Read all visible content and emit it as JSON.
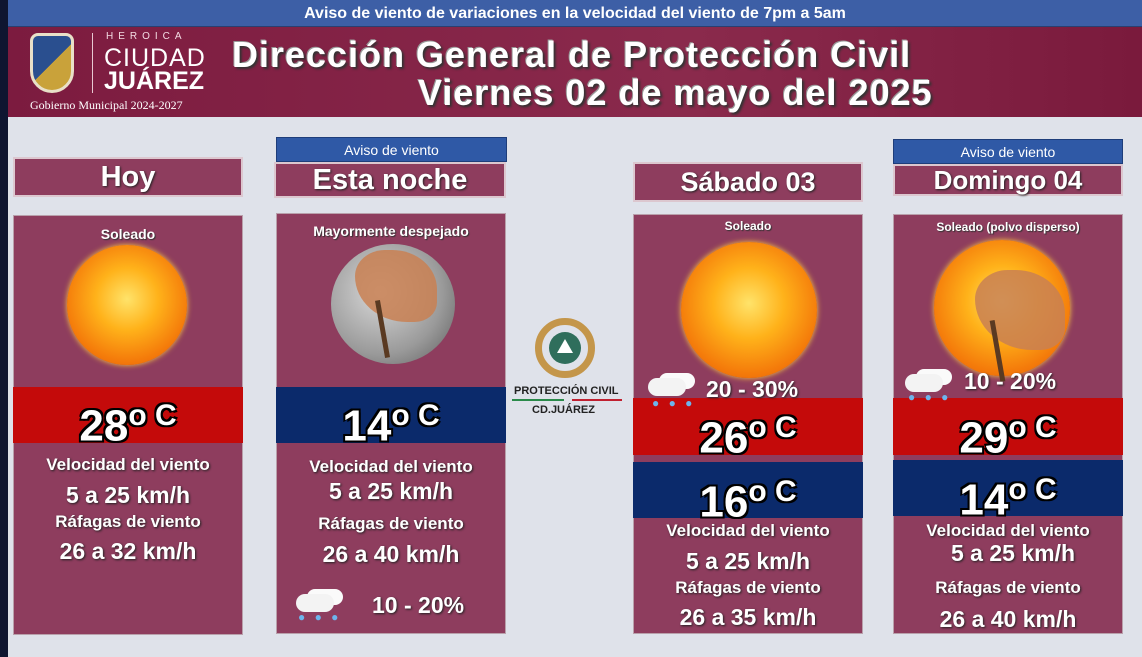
{
  "banner": "Aviso de viento de variaciones en la velocidad del viento de 7pm a 5am",
  "logo": {
    "heroica": "HEROICA",
    "ciudad": "CIUDAD",
    "juarez": "JUÁREZ",
    "gobierno": "Gobierno Municipal 2024-2027"
  },
  "title_line1": "Dirección General de Protección Civil",
  "title_line2": "Viernes 02 de mayo del 2025",
  "center_logo": {
    "line1": "PROTECCIÓN CIVIL",
    "line2": "CD.JUÁREZ"
  },
  "colors": {
    "card": "#8e3d5e",
    "header": "#7c1b3f",
    "banner": "#3d5fa6",
    "high": "#c40a0a",
    "low": "#0b2a6b"
  },
  "cards": [
    {
      "title": "Hoy",
      "condition": "Soleado",
      "icon": "sun-icon",
      "temp": "28",
      "unit": "o C",
      "wind_label": "Velocidad del viento",
      "wind": "5 a 25 km/h",
      "gust_label": "Ráfagas de viento",
      "gust": "26 a 32 km/h"
    },
    {
      "tab": "Aviso  de viento",
      "title": "Esta noche",
      "condition": "Mayormente despejado",
      "icon": "moon-wind-icon",
      "temp": "14",
      "unit": "o C",
      "wind_label": "Velocidad del viento",
      "wind": "5 a 25 km/h",
      "gust_label": "Ráfagas de viento",
      "gust": "26 a 40 km/h",
      "rain": "10 - 20%"
    },
    {
      "title": "Sábado 03",
      "condition": "Soleado",
      "icon": "sun-icon",
      "rain": "20 - 30%",
      "high": "26",
      "low": "16",
      "unit": "o C",
      "wind_label": "Velocidad del viento",
      "wind": "5 a 25 km/h",
      "gust_label": "Ráfagas de viento",
      "gust": "26 a 35 km/h"
    },
    {
      "tab": "Aviso  de viento",
      "title": "Domingo 04",
      "condition": "Soleado (polvo disperso)",
      "icon": "sun-wind-icon",
      "rain": "10 - 20%",
      "high": "29",
      "low": "14",
      "unit": "o C",
      "wind_label": "Velocidad del viento",
      "wind": "5 a 25 km/h",
      "gust_label": "Ráfagas de viento",
      "gust": "26 a 40 km/h"
    }
  ]
}
